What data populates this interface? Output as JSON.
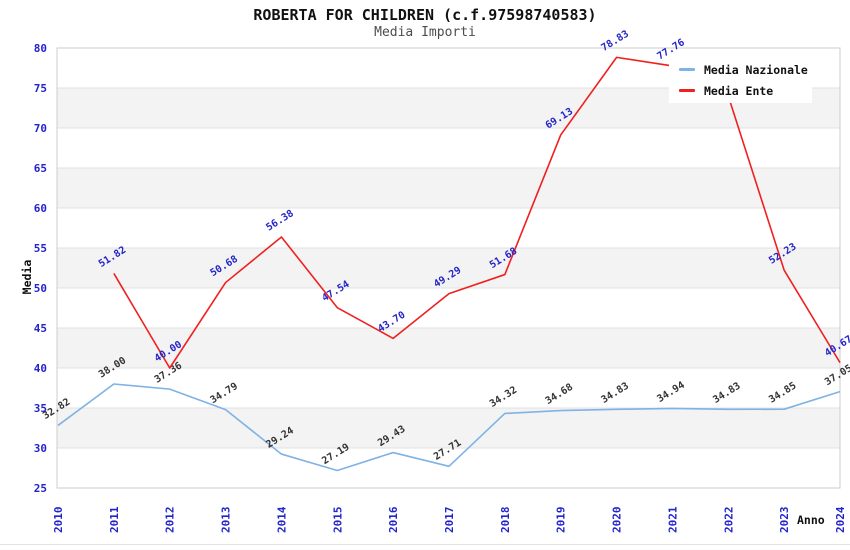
{
  "chart_data": {
    "type": "line",
    "title": "ROBERTA FOR CHILDREN (c.f.97598740583)",
    "subtitle": "Media Importi",
    "xlabel": "Anno",
    "ylabel": "Media",
    "x": [
      "2010",
      "2011",
      "2012",
      "2013",
      "2014",
      "2015",
      "2016",
      "2017",
      "2018",
      "2019",
      "2020",
      "2021",
      "2022",
      "2023",
      "2024"
    ],
    "ylim": [
      25,
      80
    ],
    "ytick_step": 5,
    "grid": "horizontal-bands-alternating",
    "legend_position": "top-right-inside",
    "series": [
      {
        "name": "Media Nazionale",
        "color": "#7fb2e5",
        "label_color": "#333333",
        "values": [
          32.82,
          38.0,
          37.36,
          34.79,
          29.24,
          27.19,
          29.43,
          27.71,
          34.32,
          34.68,
          34.83,
          34.94,
          34.83,
          34.85,
          37.05
        ],
        "labels": [
          "32.82",
          "38.00",
          "37.36",
          "34.79",
          "29.24",
          "27.19",
          "29.43",
          "27.71",
          "34.32",
          "34.68",
          "34.83",
          "34.94",
          "34.83",
          "34.85",
          "37.05"
        ]
      },
      {
        "name": "Media Ente",
        "color": "#f02020",
        "label_color": "#2424c8",
        "values": [
          null,
          51.82,
          40.0,
          50.68,
          56.38,
          47.54,
          43.7,
          49.29,
          51.68,
          69.13,
          78.83,
          77.76,
          74.0,
          52.23,
          40.67
        ],
        "labels": [
          null,
          "51.82",
          "40.00",
          "50.68",
          "56.38",
          "47.54",
          "43.70",
          "49.29",
          "51.68",
          "69.13",
          "78.83",
          "77.76",
          null,
          "52.23",
          "40.67"
        ]
      }
    ],
    "colors": {
      "tick": "#2323cc",
      "band": "#f3f3f3",
      "gridline": "#e2e2e2",
      "axis_border": "#cccccc",
      "background": "#ffffff"
    }
  }
}
